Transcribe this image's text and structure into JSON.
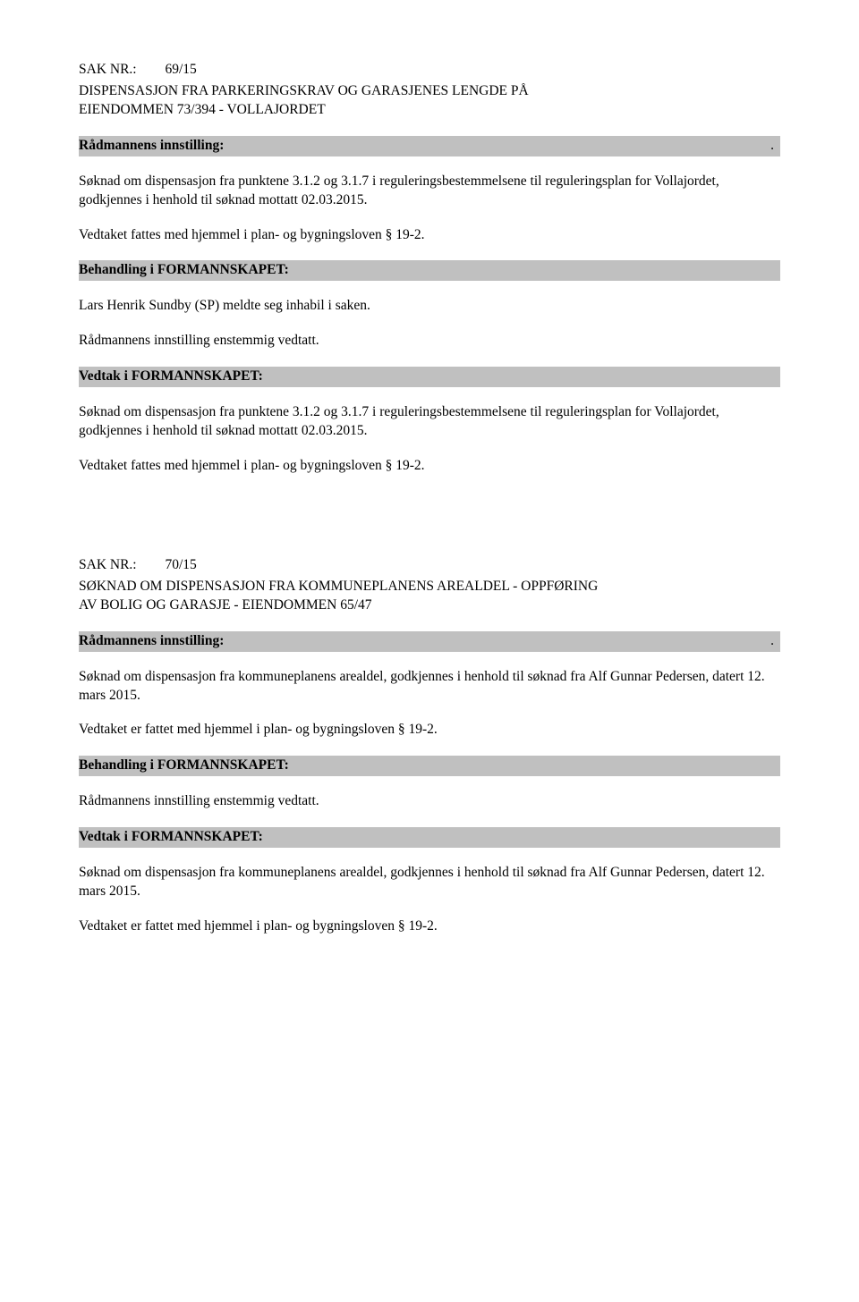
{
  "case69": {
    "sak_label": "SAK NR.:",
    "sak_num": "69/15",
    "title_line1": "DISPENSASJON FRA PARKERINGSKRAV OG GARASJENES LENGDE PÅ",
    "title_line2": "EIENDOMMEN 73/394 - VOLLAJORDET",
    "innstilling_header": "Rådmannens innstilling:",
    "dot": ".",
    "para1": "Søknad om dispensasjon fra punktene 3.1.2 og 3.1.7 i reguleringsbestemmelsene til reguleringsplan for Vollajordet, godkjennes i henhold til søknad mottatt 02.03.2015.",
    "para2": "Vedtaket fattes med hjemmel i plan- og bygningsloven § 19-2.",
    "behandling_header": "Behandling i FORMANNSKAPET:",
    "para3": "Lars Henrik Sundby (SP) meldte seg inhabil i saken.",
    "para4": "Rådmannens innstilling enstemmig vedtatt.",
    "vedtak_header": "Vedtak i FORMANNSKAPET:",
    "para5": "Søknad om dispensasjon fra punktene 3.1.2 og 3.1.7 i reguleringsbestemmelsene til reguleringsplan for Vollajordet, godkjennes i henhold til søknad mottatt 02.03.2015.",
    "para6": "Vedtaket fattes med hjemmel i plan- og bygningsloven § 19-2."
  },
  "case70": {
    "sak_label": "SAK NR.:",
    "sak_num": "70/15",
    "title_line1": "SØKNAD OM DISPENSASJON FRA KOMMUNEPLANENS AREALDEL - OPPFØRING",
    "title_line2": "AV BOLIG OG GARASJE - EIENDOMMEN 65/47",
    "innstilling_header": " Rådmannens innstilling:",
    "dot": ".",
    "para1": "Søknad om dispensasjon fra kommuneplanens arealdel, godkjennes i henhold til søknad fra Alf Gunnar Pedersen, datert 12. mars 2015.",
    "para2": "Vedtaket er fattet med hjemmel i plan- og bygningsloven § 19-2.",
    "behandling_header": "Behandling i FORMANNSKAPET:",
    "para3": "Rådmannens innstilling enstemmig vedtatt.",
    "vedtak_header": "Vedtak i FORMANNSKAPET:",
    "para4": "Søknad om dispensasjon fra kommuneplanens arealdel, godkjennes i henhold til søknad fra Alf Gunnar Pedersen, datert 12. mars 2015.",
    "para5": "Vedtaket er fattet med hjemmel i plan- og bygningsloven § 19-2."
  }
}
